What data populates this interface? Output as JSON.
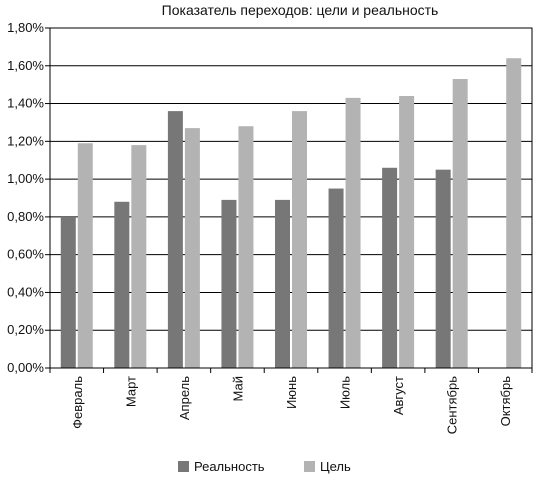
{
  "chart_data": {
    "type": "bar",
    "title": "Показатель переходов: цели и реальность",
    "xlabel": "",
    "ylabel": "",
    "categories": [
      "Февраль",
      "Март",
      "Апрель",
      "Май",
      "Июнь",
      "Июль",
      "Август",
      "Сентябрь",
      "Октябрь"
    ],
    "series": [
      {
        "name": "Реальность",
        "color": "#777777",
        "values": [
          0.8,
          0.88,
          1.36,
          0.89,
          0.89,
          0.95,
          1.06,
          1.05,
          null
        ]
      },
      {
        "name": "Цель",
        "color": "#b3b3b3",
        "values": [
          1.19,
          1.18,
          1.27,
          1.28,
          1.36,
          1.43,
          1.44,
          1.53,
          1.64
        ]
      }
    ],
    "ylim": [
      0,
      1.8
    ],
    "yticks": [
      "0,00%",
      "0,20%",
      "0,40%",
      "0,60%",
      "0,80%",
      "1,00%",
      "1,20%",
      "1,40%",
      "1,60%",
      "1,80%"
    ],
    "grid": true,
    "legend": "bottom"
  }
}
